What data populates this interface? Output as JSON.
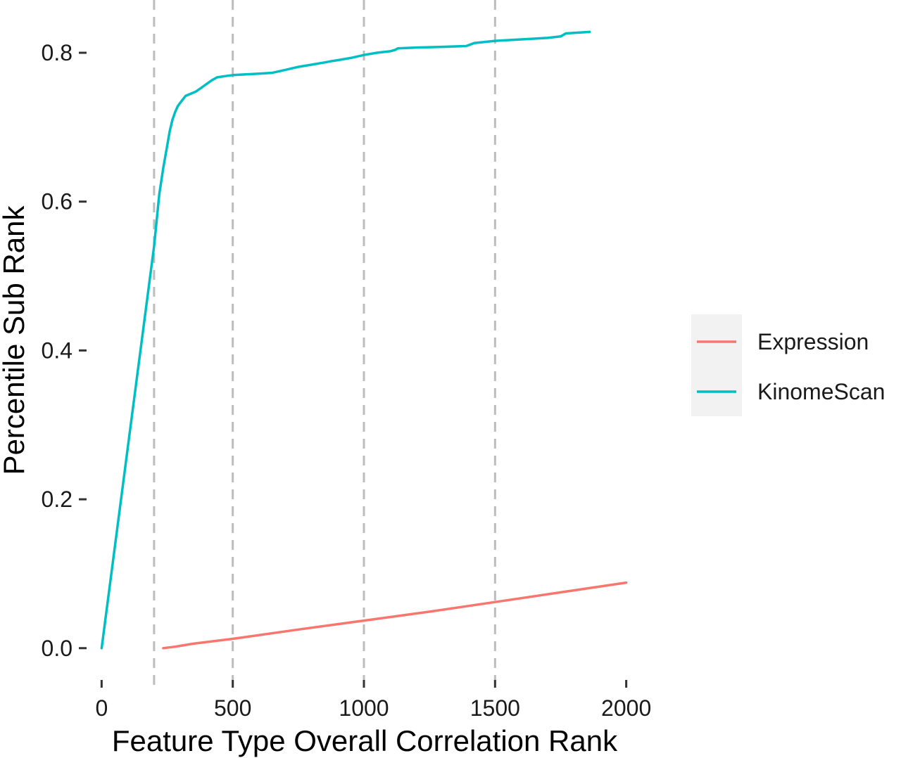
{
  "chart_data": {
    "type": "line",
    "title": "",
    "xlabel": "Feature Type Overall Correlation Rank",
    "ylabel": "Percentile Sub Rank",
    "xlim": [
      -60,
      2060
    ],
    "ylim": [
      -0.038,
      0.852
    ],
    "x_ticks": [
      0,
      500,
      1000,
      1500,
      2000
    ],
    "x_tick_labels": [
      "0",
      "500",
      "1000",
      "1500",
      "2000"
    ],
    "y_ticks": [
      0.0,
      0.2,
      0.4,
      0.6,
      0.8
    ],
    "y_tick_labels": [
      "0.0",
      "0.2",
      "0.4",
      "0.6",
      "0.8"
    ],
    "grid": false,
    "legend_position": "right",
    "vlines": [
      200,
      500,
      1000,
      1500
    ],
    "vline_color": "#bdbdbd",
    "series": [
      {
        "name": "Expression",
        "color": "#F8766D",
        "x": [
          235,
          280,
          350,
          500,
          750,
          1000,
          1250,
          1500,
          1750,
          2000
        ],
        "y": [
          0.0,
          0.002,
          0.006,
          0.0125,
          0.025,
          0.037,
          0.049,
          0.062,
          0.075,
          0.088
        ]
      },
      {
        "name": "KinomeScan",
        "color": "#00BFC4",
        "x": [
          0,
          100,
          200,
          220,
          235,
          250,
          260,
          270,
          280,
          290,
          300,
          320,
          340,
          360,
          380,
          400,
          420,
          440,
          460,
          480,
          500,
          550,
          600,
          650,
          700,
          750,
          800,
          850,
          880,
          900,
          950,
          1000,
          1050,
          1100,
          1120,
          1130,
          1200,
          1300,
          1390,
          1420,
          1500,
          1600,
          1700,
          1750,
          1770,
          1860
        ],
        "y": [
          0.0,
          0.27,
          0.54,
          0.61,
          0.645,
          0.675,
          0.695,
          0.71,
          0.72,
          0.728,
          0.733,
          0.742,
          0.745,
          0.748,
          0.753,
          0.758,
          0.763,
          0.767,
          0.768,
          0.769,
          0.77,
          0.771,
          0.772,
          0.773,
          0.777,
          0.781,
          0.784,
          0.787,
          0.789,
          0.79,
          0.793,
          0.797,
          0.8,
          0.802,
          0.804,
          0.806,
          0.807,
          0.808,
          0.809,
          0.813,
          0.816,
          0.818,
          0.82,
          0.822,
          0.826,
          0.828
        ]
      }
    ]
  }
}
